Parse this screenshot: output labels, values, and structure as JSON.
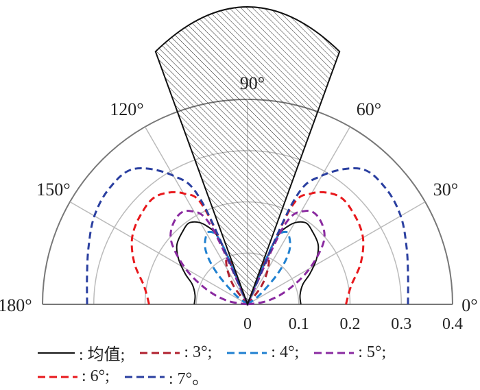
{
  "chart_data": {
    "type": "polar-line",
    "angle_range_deg": [
      0,
      180
    ],
    "radial_range": [
      0,
      0.4
    ],
    "radial_ticks": [
      "0",
      "0.1",
      "0.2",
      "0.3",
      "0.4"
    ],
    "angle_ticks": [
      "0°",
      "30°",
      "60°",
      "90°",
      "120°",
      "150°",
      "180°"
    ],
    "grid": true,
    "symmetric_about_deg": 90,
    "shaded_sector_deg": [
      70,
      110
    ],
    "series": [
      {
        "name": "均值",
        "color": "#111111",
        "style": "solid",
        "points": [
          [
            0,
            0.104
          ],
          [
            10,
            0.104
          ],
          [
            20,
            0.115
          ],
          [
            26,
            0.135
          ],
          [
            33,
            0.16
          ],
          [
            40,
            0.18
          ],
          [
            48,
            0.19
          ],
          [
            55,
            0.195
          ],
          [
            62,
            0.175
          ],
          [
            67,
            0.13
          ],
          [
            70,
            0.0
          ]
        ]
      },
      {
        "name": "3°",
        "color": "#b0202e",
        "style": "dashed",
        "points": [
          [
            45,
            0.0
          ],
          [
            52,
            0.04
          ],
          [
            58,
            0.07
          ],
          [
            64,
            0.095
          ],
          [
            68,
            0.09
          ],
          [
            70,
            0.0
          ]
        ]
      },
      {
        "name": "4°",
        "color": "#1f80d0",
        "style": "dashed",
        "points": [
          [
            30,
            0.0
          ],
          [
            38,
            0.03
          ],
          [
            45,
            0.08
          ],
          [
            50,
            0.12
          ],
          [
            55,
            0.145
          ],
          [
            62,
            0.16
          ],
          [
            67,
            0.13
          ],
          [
            70,
            0.0
          ]
        ]
      },
      {
        "name": "5°",
        "color": "#8a2aa0",
        "style": "dashed",
        "points": [
          [
            0,
            0.0
          ],
          [
            10,
            0.04
          ],
          [
            20,
            0.085
          ],
          [
            30,
            0.14
          ],
          [
            40,
            0.195
          ],
          [
            50,
            0.218
          ],
          [
            58,
            0.215
          ],
          [
            65,
            0.17
          ],
          [
            70,
            0.0
          ]
        ]
      },
      {
        "name": "6°",
        "color": "#e8181c",
        "style": "dashed",
        "points": [
          [
            0,
            0.192
          ],
          [
            10,
            0.205
          ],
          [
            20,
            0.235
          ],
          [
            30,
            0.26
          ],
          [
            40,
            0.272
          ],
          [
            50,
            0.276
          ],
          [
            60,
            0.25
          ],
          [
            66,
            0.2
          ],
          [
            70,
            0.0
          ]
        ]
      },
      {
        "name": "7°",
        "color": "#2a3fa0",
        "style": "dashed",
        "points": [
          [
            0,
            0.313
          ],
          [
            10,
            0.318
          ],
          [
            20,
            0.33
          ],
          [
            30,
            0.345
          ],
          [
            40,
            0.352
          ],
          [
            50,
            0.345
          ],
          [
            60,
            0.29
          ],
          [
            66,
            0.22
          ],
          [
            70,
            0.0
          ]
        ]
      }
    ]
  },
  "legend": {
    "items": [
      {
        "label": ": 均值;"
      },
      {
        "label": ": 3°;"
      },
      {
        "label": ": 4°;"
      },
      {
        "label": ": 5°;"
      },
      {
        "label": ": 6°;"
      },
      {
        "label": ": 7°。"
      }
    ]
  }
}
